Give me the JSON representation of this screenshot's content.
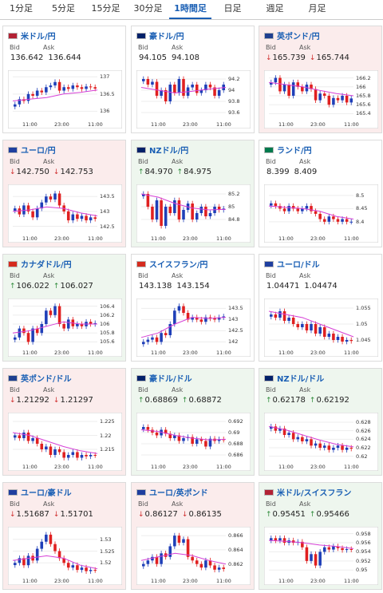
{
  "tabs": [
    {
      "label": "1分足",
      "active": false
    },
    {
      "label": "5分足",
      "active": false
    },
    {
      "label": "15分足",
      "active": false
    },
    {
      "label": "30分足",
      "active": false
    },
    {
      "label": "1時間足",
      "active": true
    },
    {
      "label": "日足",
      "active": false
    },
    {
      "label": "週足",
      "active": false
    },
    {
      "label": "月足",
      "active": false
    }
  ],
  "labels": {
    "bid": "Bid",
    "ask": "Ask"
  },
  "colors": {
    "up_candle": "#1f3fb8",
    "down_candle": "#e02020",
    "ma_line": "#d63fd6",
    "up_bg": "#eef6ee",
    "down_bg": "#fbecec",
    "accent": "#1a5fb4"
  },
  "cards": [
    {
      "pair": "米ドル/円",
      "flag": "flag-us",
      "trend": "none",
      "bid": "136.642",
      "ask": "136.644",
      "bid_arrow": "",
      "ask_arrow": "",
      "yticks": [
        "137",
        "136.5",
        "136"
      ],
      "ylim": [
        135.8,
        137.1
      ],
      "xticks": [
        "11:00",
        "23:00",
        "11:00"
      ],
      "ma": [
        136.3,
        136.35,
        136.4,
        136.5,
        136.55,
        136.62
      ],
      "closes": [
        136.2,
        136.35,
        136.3,
        136.5,
        136.45,
        136.6,
        136.55,
        136.7,
        136.75,
        136.85,
        136.6,
        136.7,
        136.65,
        136.75,
        136.7,
        136.65,
        136.72,
        136.7,
        136.66
      ]
    },
    {
      "pair": "豪ドル/円",
      "flag": "flag-au",
      "trend": "none",
      "bid": "94.105",
      "ask": "94.108",
      "bid_arrow": "",
      "ask_arrow": "",
      "yticks": [
        "94.2",
        "94",
        "93.8",
        "93.6"
      ],
      "ylim": [
        93.5,
        94.3
      ],
      "xticks": [
        "11:00",
        "23:00",
        "11:00"
      ],
      "ma": [
        94.05,
        94.0,
        93.95,
        93.98,
        94.02,
        94.05
      ],
      "closes": [
        94.2,
        94.1,
        94.15,
        93.9,
        94.0,
        93.8,
        94.1,
        93.95,
        94.2,
        93.9,
        94.05,
        94.1,
        93.95,
        94.0,
        94.1,
        94.05,
        93.9,
        94.0,
        94.1
      ]
    },
    {
      "pair": "英ポンド/円",
      "flag": "flag-uk",
      "trend": "down",
      "bid": "165.739",
      "ask": "165.744",
      "bid_arrow": "↓",
      "ask_arrow": "↓",
      "yticks": [
        "166.2",
        "166",
        "165.8",
        "165.6",
        "165.4"
      ],
      "ylim": [
        165.3,
        166.3
      ],
      "xticks": [
        "11:00",
        "23:00",
        "11:00"
      ],
      "ma": [
        166.1,
        166.05,
        166.0,
        165.92,
        165.85,
        165.8
      ],
      "closes": [
        166.1,
        166.2,
        165.9,
        166.05,
        165.8,
        166.1,
        166.0,
        165.9,
        166.05,
        165.95,
        165.7,
        165.85,
        165.8,
        165.6,
        165.75,
        165.7,
        165.8,
        165.65,
        165.74
      ]
    },
    {
      "pair": "ユーロ/円",
      "flag": "flag-eu",
      "trend": "down",
      "bid": "142.750",
      "ask": "142.753",
      "bid_arrow": "↓",
      "ask_arrow": "↓",
      "yticks": [
        "143.5",
        "143",
        "142.5"
      ],
      "ylim": [
        142.3,
        143.8
      ],
      "xticks": [
        "11:00",
        "23:00",
        "11:00"
      ],
      "ma": [
        143.0,
        143.05,
        143.15,
        143.1,
        142.95,
        142.85
      ],
      "closes": [
        143.1,
        142.9,
        143.2,
        143.0,
        142.8,
        143.1,
        143.3,
        143.5,
        143.4,
        143.6,
        143.2,
        143.0,
        142.7,
        142.9,
        142.75,
        142.85,
        142.7,
        142.8,
        142.75
      ]
    },
    {
      "pair": "NZドル/円",
      "flag": "flag-nz",
      "trend": "up",
      "bid": "84.970",
      "ask": "84.975",
      "bid_arrow": "↑",
      "ask_arrow": "↑",
      "yticks": [
        "85.2",
        "85",
        "84.8"
      ],
      "ylim": [
        84.6,
        85.3
      ],
      "xticks": [
        "11:00",
        "23:00",
        "11:00"
      ],
      "ma": [
        85.2,
        85.15,
        85.05,
        84.98,
        84.95,
        84.96
      ],
      "closes": [
        85.2,
        85.0,
        84.8,
        85.1,
        84.7,
        85.0,
        84.9,
        85.1,
        84.8,
        84.95,
        85.05,
        84.8,
        84.9,
        85.0,
        84.85,
        84.9,
        85.0,
        84.95,
        84.97
      ]
    },
    {
      "pair": "ランド/円",
      "flag": "flag-za",
      "trend": "none",
      "bid": "8.399",
      "ask": "8.409",
      "bid_arrow": "",
      "ask_arrow": "",
      "yticks": [
        "8.5",
        "8.45",
        "8.4"
      ],
      "ylim": [
        8.36,
        8.53
      ],
      "xticks": [
        "11:00",
        "23:00",
        "11:00"
      ],
      "ma": [
        8.46,
        8.455,
        8.45,
        8.44,
        8.42,
        8.41
      ],
      "closes": [
        8.47,
        8.46,
        8.45,
        8.44,
        8.46,
        8.45,
        8.44,
        8.45,
        8.46,
        8.44,
        8.43,
        8.41,
        8.4,
        8.42,
        8.41,
        8.4,
        8.41,
        8.4,
        8.4
      ]
    },
    {
      "pair": "カナダドル/円",
      "flag": "flag-ca",
      "trend": "up",
      "bid": "106.022",
      "ask": "106.027",
      "bid_arrow": "↑",
      "ask_arrow": "↑",
      "yticks": [
        "106.4",
        "106.2",
        "106",
        "105.8",
        "105.6"
      ],
      "ylim": [
        105.5,
        106.5
      ],
      "xticks": [
        "11:00",
        "23:00",
        "11:00"
      ],
      "ma": [
        105.8,
        105.85,
        105.95,
        106.05,
        106.0,
        106.0
      ],
      "closes": [
        105.7,
        105.9,
        105.8,
        105.6,
        105.9,
        105.8,
        106.0,
        106.3,
        106.2,
        106.4,
        106.0,
        105.9,
        106.1,
        105.95,
        106.0,
        105.95,
        106.05,
        106.0,
        106.02
      ]
    },
    {
      "pair": "スイスフラン/円",
      "flag": "flag-ch",
      "trend": "none",
      "bid": "143.138",
      "ask": "143.154",
      "bid_arrow": "",
      "ask_arrow": "",
      "yticks": [
        "143.5",
        "143",
        "142.5",
        "142"
      ],
      "ylim": [
        141.8,
        143.8
      ],
      "xticks": [
        "11:00",
        "23:00",
        "11:00"
      ],
      "ma": [
        142.2,
        142.4,
        142.8,
        143.1,
        143.05,
        143.1
      ],
      "closes": [
        142.0,
        142.1,
        142.2,
        142.0,
        142.4,
        142.3,
        142.8,
        143.4,
        143.6,
        143.3,
        143.0,
        143.1,
        143.0,
        142.9,
        143.1,
        143.05,
        143.0,
        143.1,
        143.14
      ]
    },
    {
      "pair": "ユーロ/ドル",
      "flag": "flag-eu",
      "trend": "none",
      "bid": "1.04471",
      "ask": "1.04474",
      "bid_arrow": "",
      "ask_arrow": "",
      "yticks": [
        "1.055",
        "1.05",
        "1.045"
      ],
      "ylim": [
        1.043,
        1.057
      ],
      "xticks": [
        "11:00",
        "23:00",
        "11:00"
      ],
      "ma": [
        1.054,
        1.053,
        1.052,
        1.05,
        1.048,
        1.046
      ],
      "closes": [
        1.053,
        1.052,
        1.054,
        1.051,
        1.052,
        1.05,
        1.049,
        1.05,
        1.048,
        1.05,
        1.047,
        1.049,
        1.046,
        1.047,
        1.045,
        1.046,
        1.0445,
        1.045,
        1.0447
      ]
    },
    {
      "pair": "英ポンド/ドル",
      "flag": "flag-uk",
      "trend": "down",
      "bid": "1.21292",
      "ask": "1.21297",
      "bid_arrow": "↓",
      "ask_arrow": "↓",
      "yticks": [
        "1.225",
        "1.22",
        "1.215"
      ],
      "ylim": [
        1.211,
        1.227
      ],
      "xticks": [
        "11:00",
        "23:00",
        "11:00"
      ],
      "ma": [
        1.221,
        1.22,
        1.218,
        1.216,
        1.2145,
        1.2135
      ],
      "closes": [
        1.22,
        1.219,
        1.221,
        1.218,
        1.219,
        1.217,
        1.215,
        1.216,
        1.213,
        1.215,
        1.214,
        1.212,
        1.213,
        1.214,
        1.212,
        1.213,
        1.2125,
        1.213,
        1.2129
      ]
    },
    {
      "pair": "豪ドル/ドル",
      "flag": "flag-au",
      "trend": "up",
      "bid": "0.68869",
      "ask": "0.68872",
      "bid_arrow": "↑",
      "ask_arrow": "↑",
      "yticks": [
        "0.692",
        "0.69",
        "0.688",
        "0.686"
      ],
      "ylim": [
        0.685,
        0.693
      ],
      "xticks": [
        "11:00",
        "23:00",
        "11:00"
      ],
      "ma": [
        0.6905,
        0.6902,
        0.6895,
        0.689,
        0.6887,
        0.6888
      ],
      "closes": [
        0.691,
        0.6905,
        0.69,
        0.6895,
        0.6905,
        0.6898,
        0.689,
        0.6895,
        0.6885,
        0.689,
        0.6892,
        0.688,
        0.6888,
        0.6885,
        0.6875,
        0.6889,
        0.6885,
        0.6888,
        0.6887
      ]
    },
    {
      "pair": "NZドル/ドル",
      "flag": "flag-nz",
      "trend": "up",
      "bid": "0.62178",
      "ask": "0.62192",
      "bid_arrow": "↑",
      "ask_arrow": "↑",
      "yticks": [
        "0.628",
        "0.626",
        "0.624",
        "0.622",
        "0.62"
      ],
      "ylim": [
        0.619,
        0.6295
      ],
      "xticks": [
        "11:00",
        "23:00",
        "11:00"
      ],
      "ma": [
        0.627,
        0.6262,
        0.625,
        0.6238,
        0.6228,
        0.6222
      ],
      "closes": [
        0.627,
        0.626,
        0.6265,
        0.625,
        0.6255,
        0.624,
        0.6245,
        0.6235,
        0.624,
        0.6225,
        0.623,
        0.622,
        0.6225,
        0.6215,
        0.622,
        0.6225,
        0.6215,
        0.622,
        0.6218
      ]
    },
    {
      "pair": "ユーロ/豪ドル",
      "flag": "flag-eu",
      "trend": "down",
      "bid": "1.51687",
      "ask": "1.51701",
      "bid_arrow": "↓",
      "ask_arrow": "↓",
      "yticks": [
        "1.53",
        "1.525",
        "1.52"
      ],
      "ylim": [
        1.515,
        1.534
      ],
      "xticks": [
        "11:00",
        "23:00",
        "11:00"
      ],
      "ma": [
        1.521,
        1.522,
        1.523,
        1.522,
        1.519,
        1.5175
      ],
      "closes": [
        1.52,
        1.522,
        1.519,
        1.523,
        1.521,
        1.526,
        1.529,
        1.532,
        1.528,
        1.525,
        1.522,
        1.52,
        1.518,
        1.519,
        1.517,
        1.518,
        1.5165,
        1.517,
        1.5169
      ]
    },
    {
      "pair": "ユーロ/英ポンド",
      "flag": "flag-eu",
      "trend": "down",
      "bid": "0.86127",
      "ask": "0.86135",
      "bid_arrow": "↓",
      "ask_arrow": "↓",
      "yticks": [
        "0.866",
        "0.864",
        "0.862"
      ],
      "ylim": [
        0.8605,
        0.8668
      ],
      "xticks": [
        "11:00",
        "23:00",
        "11:00"
      ],
      "ma": [
        0.8625,
        0.863,
        0.8635,
        0.8632,
        0.8625,
        0.862
      ],
      "closes": [
        0.862,
        0.8625,
        0.863,
        0.862,
        0.8635,
        0.863,
        0.8645,
        0.866,
        0.865,
        0.8655,
        0.863,
        0.8625,
        0.862,
        0.8615,
        0.8625,
        0.8618,
        0.8612,
        0.8615,
        0.8613
      ]
    },
    {
      "pair": "米ドル/スイスフラン",
      "flag": "flag-us",
      "trend": "up",
      "bid": "0.95451",
      "ask": "0.95466",
      "bid_arrow": "↑",
      "ask_arrow": "↑",
      "yticks": [
        "0.958",
        "0.956",
        "0.954",
        "0.952",
        "0.95"
      ],
      "ylim": [
        0.949,
        0.9588
      ],
      "xticks": [
        "11:00",
        "23:00",
        "11:00"
      ],
      "ma": [
        0.9565,
        0.9563,
        0.956,
        0.9555,
        0.9552,
        0.9547
      ],
      "closes": [
        0.957,
        0.9565,
        0.957,
        0.956,
        0.9565,
        0.956,
        0.9562,
        0.955,
        0.952,
        0.9535,
        0.951,
        0.954,
        0.955,
        0.9545,
        0.9552,
        0.9548,
        0.9544,
        0.9546,
        0.9545
      ]
    }
  ]
}
